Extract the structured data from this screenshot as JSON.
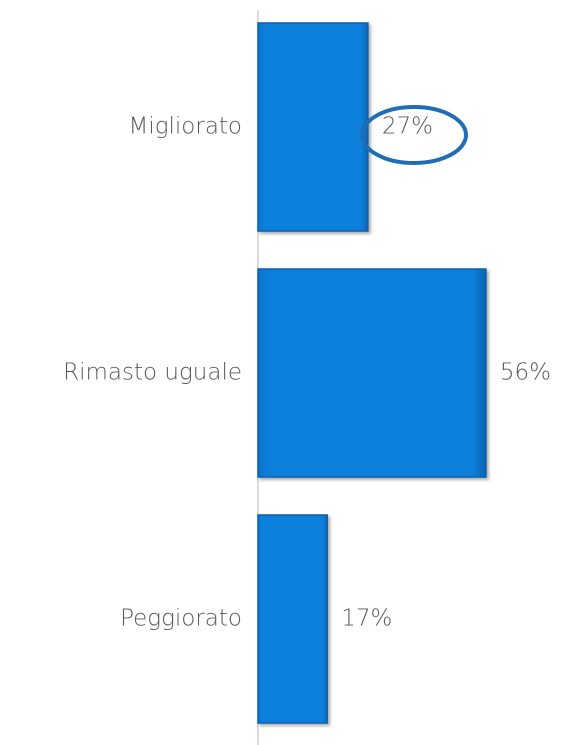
{
  "chart_data": {
    "type": "bar",
    "orientation": "horizontal",
    "categories": [
      "Migliorato",
      "Rimasto uguale",
      "Peggiorato"
    ],
    "values": [
      27,
      56,
      17
    ],
    "value_labels": [
      "27%",
      "56%",
      "17%"
    ],
    "color": "#0b7dd8"
  }
}
